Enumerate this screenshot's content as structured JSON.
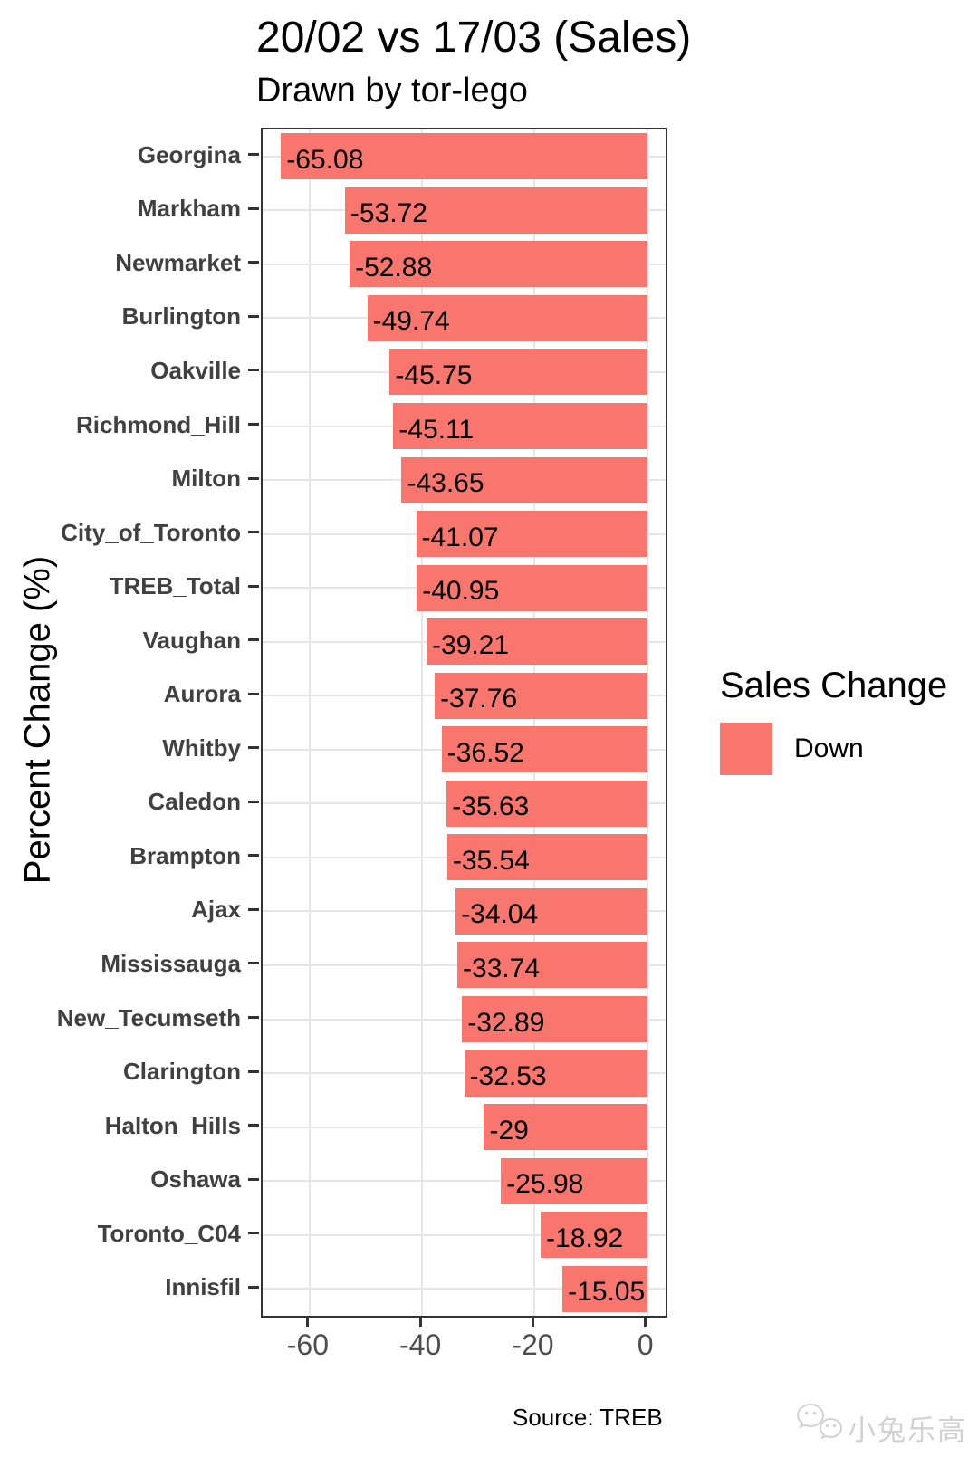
{
  "header": {
    "title": "20/02 vs 17/03 (Sales)",
    "subtitle": "Drawn by tor-lego"
  },
  "y_axis": {
    "title": "Percent Change (%)"
  },
  "legend": {
    "title": "Sales Change",
    "items": [
      {
        "label": "Down",
        "color": "#F8766D"
      }
    ]
  },
  "caption": "Source: TREB",
  "watermark": {
    "icon": "wechat-icon",
    "text": "小兔乐高"
  },
  "chart_data": {
    "type": "bar",
    "orientation": "horizontal",
    "title": "20/02 vs 17/03 (Sales)",
    "subtitle": "Drawn by tor-lego",
    "xlabel": "",
    "ylabel": "Percent Change (%)",
    "categories": [
      "Georgina",
      "Markham",
      "Newmarket",
      "Burlington",
      "Oakville",
      "Richmond_Hill",
      "Milton",
      "City_of_Toronto",
      "TREB_Total",
      "Vaughan",
      "Aurora",
      "Whitby",
      "Caledon",
      "Brampton",
      "Ajax",
      "Mississauga",
      "New_Tecumseth",
      "Clarington",
      "Halton_Hills",
      "Oshawa",
      "Toronto_C04",
      "Innisfil"
    ],
    "values": [
      -65.08,
      -53.72,
      -52.88,
      -49.74,
      -45.75,
      -45.11,
      -43.65,
      -41.07,
      -40.95,
      -39.21,
      -37.76,
      -36.52,
      -35.63,
      -35.54,
      -34.04,
      -33.74,
      -32.89,
      -32.53,
      -29,
      -25.98,
      -18.92,
      -15.05
    ],
    "bar_labels": [
      "-65.08",
      "-53.72",
      "-52.88",
      "-49.74",
      "-45.75",
      "-45.11",
      "-43.65",
      "-41.07",
      "-40.95",
      "-39.21",
      "-37.76",
      "-36.52",
      "-35.63",
      "-35.54",
      "-34.04",
      "-33.74",
      "-32.89",
      "-32.53",
      "-29",
      "-25.98",
      "-18.92",
      "-15.05"
    ],
    "bar_color": "#F8766D",
    "xlim": [
      -68.35,
      3.27
    ],
    "x_ticks": [
      -60,
      -40,
      -20,
      0
    ],
    "grid": true,
    "legend_position": "right",
    "legend": {
      "title": "Sales Change",
      "items": [
        {
          "label": "Down",
          "color": "#F8766D"
        }
      ]
    },
    "caption": "Source: TREB"
  }
}
